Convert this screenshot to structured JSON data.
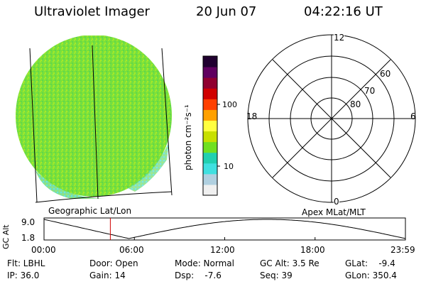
{
  "header": {
    "title": "Ultraviolet Imager",
    "date": "20 Jun 07",
    "time": "04:22:16 UT"
  },
  "earth_panel": {
    "caption": "Geographic Lat/Lon",
    "disk_color": "#7be03a"
  },
  "colorbar": {
    "unit_label": "photon cm⁻²s⁻¹",
    "tick_100": "100",
    "tick_10": "10",
    "colors": [
      "#f0f0f0",
      "#b0d0e0",
      "#40e0e0",
      "#20d0b0",
      "#70e020",
      "#c8e000",
      "#ffff40",
      "#ffa000",
      "#ff4000",
      "#d00000",
      "#900030",
      "#600060",
      "#200030"
    ]
  },
  "polar_panel": {
    "caption": "Apex MLat/MLT",
    "mlt_top": "12",
    "mlt_right": "6",
    "mlt_bottom": "0",
    "mlt_left": "18",
    "lat_60": "60",
    "lat_70": "70",
    "lat_80": "80"
  },
  "altitude_strip": {
    "ylabel": "GC Alt",
    "ytick_high": "9.0",
    "ytick_low": "1.8",
    "xticks": [
      "00:00",
      "06:00",
      "12:00",
      "18:00",
      "23:59"
    ],
    "marker_color": "#d00000",
    "current_time_fraction": 0.1835
  },
  "info": {
    "flt": "Flt: LBHL",
    "ip": "IP: 36.0",
    "door": "Door: Open",
    "gain": "Gain: 14",
    "mode": "Mode: Normal",
    "dsp": "Dsp:    -7.6",
    "gcalt": "GC Alt: 3.5 Re",
    "seq": "Seq: 39",
    "glat": "GLat:    -9.4",
    "glon": "GLon: 350.4"
  }
}
